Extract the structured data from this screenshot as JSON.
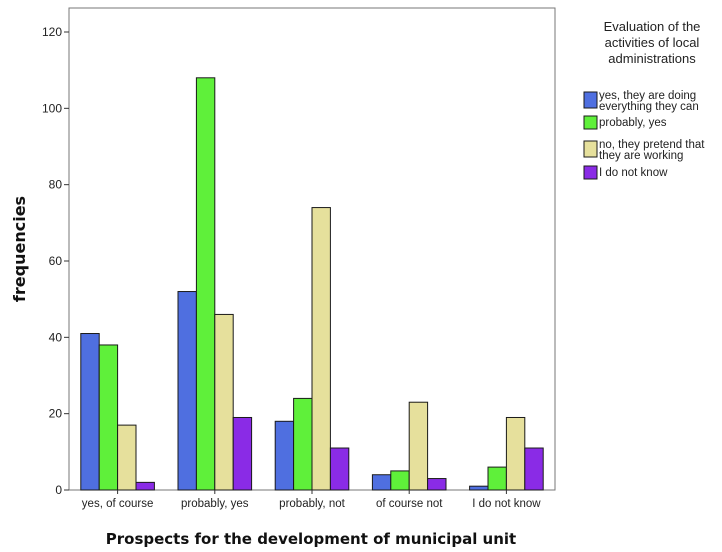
{
  "chart_data": {
    "type": "bar",
    "xlabel": "Prospects for the development of municipal unit",
    "ylabel": "frequencies",
    "ylim": [
      0,
      120
    ],
    "yticks": [
      0,
      20,
      40,
      60,
      80,
      100,
      120
    ],
    "grid": false,
    "legend_position": "top-right",
    "legend_title": [
      "Evaluation of the",
      "activities of local",
      "administrations"
    ],
    "categories": [
      "yes, of course",
      "probably, yes",
      "probably, not",
      "of course not",
      "I do not know"
    ],
    "series": [
      {
        "name": "yes, they are doing everything they can",
        "label_lines": [
          "yes, they are doing",
          "everything they can"
        ],
        "color": "#4f6fe0",
        "values": [
          41,
          52,
          18,
          4,
          1
        ]
      },
      {
        "name": "probably, yes",
        "label_lines": [
          "probably, yes"
        ],
        "color": "#5ff03a",
        "values": [
          38,
          108,
          24,
          5,
          6
        ]
      },
      {
        "name": "no, they pretend that they are working",
        "label_lines": [
          "no, they pretend that",
          "they are working"
        ],
        "color": "#e6e09c",
        "values": [
          17,
          46,
          74,
          23,
          19
        ]
      },
      {
        "name": "I do not know",
        "label_lines": [
          "I do not know"
        ],
        "color": "#8a2be6",
        "values": [
          2,
          19,
          11,
          3,
          11
        ]
      }
    ]
  }
}
